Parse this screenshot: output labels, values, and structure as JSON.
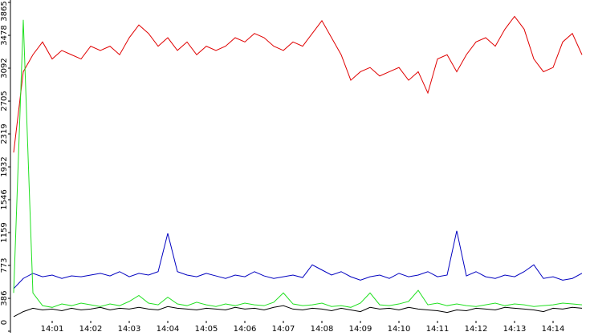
{
  "chart_data": {
    "type": "line",
    "categories": [
      null,
      null,
      null,
      null,
      "14:01",
      null,
      null,
      null,
      "14:02",
      null,
      null,
      null,
      "14:03",
      null,
      null,
      null,
      "14:04",
      null,
      null,
      null,
      "14:05",
      null,
      null,
      null,
      "14:06",
      null,
      null,
      null,
      "14:07",
      null,
      null,
      null,
      "14:08",
      null,
      null,
      null,
      "14:09",
      null,
      null,
      null,
      "14:10",
      null,
      null,
      null,
      "14:11",
      null,
      null,
      null,
      "14:12",
      null,
      null,
      null,
      "14:13",
      null,
      null,
      null,
      "14:14",
      null,
      null,
      null
    ],
    "series": [
      {
        "color": "#e00000",
        "values": [
          2100,
          3050,
          3250,
          3400,
          3200,
          3300,
          3250,
          3200,
          3350,
          3300,
          3350,
          3250,
          3450,
          3600,
          3500,
          3350,
          3450,
          3300,
          3400,
          3250,
          3350,
          3300,
          3350,
          3450,
          3400,
          3500,
          3450,
          3350,
          3300,
          3400,
          3350,
          3500,
          3650,
          3450,
          3250,
          2950,
          3050,
          3100,
          3000,
          3050,
          3100,
          2950,
          3050,
          2800,
          3200,
          3250,
          3050,
          3250,
          3400,
          3450,
          3350,
          3550,
          3700,
          3550,
          3200,
          3050,
          3100,
          3400,
          3500,
          3250
        ]
      },
      {
        "color": "#0000c0",
        "values": [
          500,
          620,
          680,
          640,
          660,
          620,
          650,
          640,
          660,
          680,
          650,
          700,
          640,
          680,
          660,
          700,
          1150,
          700,
          660,
          640,
          680,
          650,
          620,
          660,
          640,
          700,
          650,
          620,
          640,
          660,
          630,
          780,
          720,
          660,
          700,
          640,
          600,
          640,
          660,
          620,
          680,
          640,
          660,
          700,
          640,
          660,
          1180,
          650,
          700,
          640,
          620,
          660,
          640,
          700,
          780,
          620,
          640,
          600,
          620,
          680
        ]
      },
      {
        "color": "#20e020",
        "values": [
          450,
          3660,
          450,
          300,
          280,
          320,
          300,
          330,
          310,
          290,
          320,
          300,
          350,
          420,
          330,
          310,
          400,
          320,
          300,
          340,
          310,
          290,
          320,
          300,
          330,
          310,
          300,
          340,
          450,
          320,
          300,
          310,
          330,
          290,
          300,
          280,
          330,
          450,
          310,
          300,
          320,
          350,
          480,
          310,
          330,
          300,
          320,
          300,
          290,
          310,
          330,
          300,
          320,
          310,
          290,
          300,
          310,
          330,
          320,
          310
        ]
      },
      {
        "color": "#000000",
        "values": [
          170,
          230,
          270,
          250,
          260,
          240,
          270,
          250,
          260,
          280,
          250,
          270,
          260,
          280,
          260,
          250,
          290,
          270,
          260,
          250,
          270,
          260,
          250,
          280,
          260,
          270,
          250,
          280,
          300,
          260,
          250,
          270,
          260,
          240,
          270,
          250,
          230,
          280,
          260,
          270,
          250,
          280,
          260,
          250,
          240,
          220,
          250,
          240,
          270,
          260,
          250,
          280,
          270,
          260,
          250,
          230,
          270,
          260,
          280,
          270
        ]
      }
    ],
    "ylim": [
      0,
      3865
    ],
    "yticks": [
      0,
      386,
      773,
      1159,
      1546,
      1932,
      2319,
      2705,
      3092,
      3478,
      3865
    ]
  }
}
